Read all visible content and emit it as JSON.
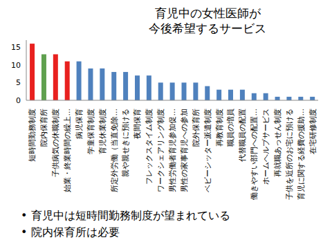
{
  "chart_data": {
    "type": "bar",
    "title": "育児中の女性医師が\n今後希望するサービス",
    "categories": [
      "短時間勤務制度",
      "院内保育所",
      "子供病気の休職制度",
      "始業・終業時間の繰上…",
      "病児保育",
      "学童保育制度",
      "育児休業制度",
      "所定外労働（当直免除…",
      "親や親せきに預ける",
      "夜間保育",
      "フレックスタイム制度",
      "ワークシェアリング制度",
      "男性労働者育児参加促…",
      "男性の家事育児への参加",
      "院外保育所",
      "ベビーシッター派遣制度",
      "再教育制度",
      "職員の増員",
      "代替職員の配置",
      "働きやすい部門への配置…",
      "ホームヘルプサービス",
      "再就職あっせん制度",
      "子供を近所のお宅に預ける",
      "育児に関する経費の援助…",
      "在宅研修制度"
    ],
    "values": [
      16,
      13,
      13,
      11,
      11,
      9,
      9,
      8,
      8,
      7,
      7,
      5,
      5,
      5,
      5,
      4,
      3,
      3,
      3,
      2,
      2,
      1,
      1,
      1,
      1
    ],
    "colors": [
      "#e8211f",
      "#5fa04e",
      "#e8211f",
      "#e8211f",
      "#4f81bd",
      "#4f81bd",
      "#4f81bd",
      "#4f81bd",
      "#4f81bd",
      "#4f81bd",
      "#4f81bd",
      "#4f81bd",
      "#4f81bd",
      "#4f81bd",
      "#4f81bd",
      "#4f81bd",
      "#4f81bd",
      "#4f81bd",
      "#4f81bd",
      "#4f81bd",
      "#4f81bd",
      "#4f81bd",
      "#4f81bd",
      "#4f81bd",
      "#4f81bd"
    ],
    "ylim": [
      0,
      17
    ],
    "yticks": [
      0,
      5,
      10,
      15
    ],
    "grid": false,
    "annotations": [
      "• 育児中は短時間勤務制度が望まれている",
      "• 院内保育所は必要"
    ]
  }
}
